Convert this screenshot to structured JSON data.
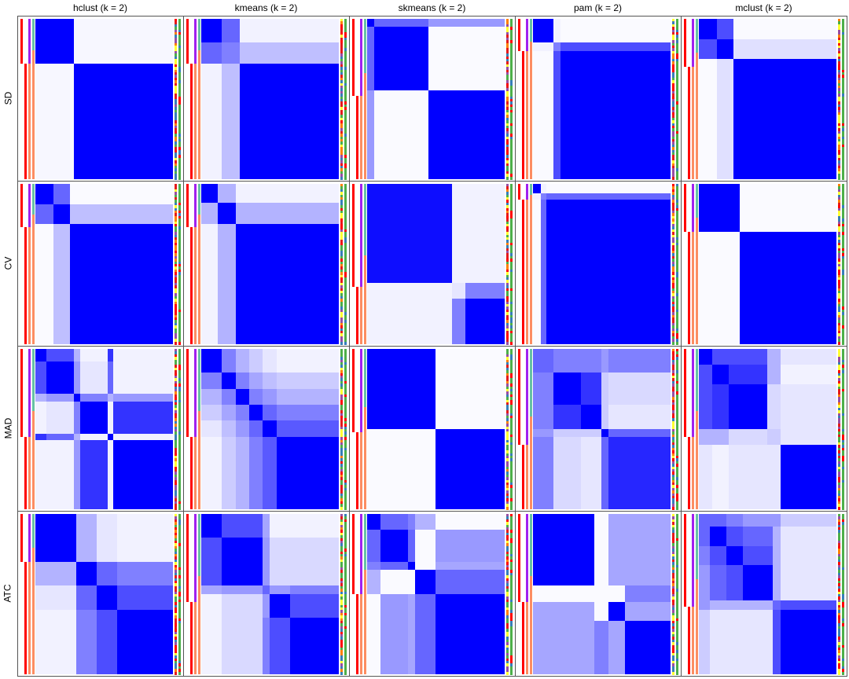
{
  "chart_data": {
    "type": "heatmap",
    "columns": [
      "hclust (k = 2)",
      "kmeans (k = 2)",
      "skmeans (k = 2)",
      "pam (k = 2)",
      "mclust (k = 2)"
    ],
    "rows": [
      "SD",
      "CV",
      "MAD",
      "ATC"
    ],
    "value_range": [
      0,
      1
    ],
    "colors": {
      "low": "#ffffff",
      "high": "#0000ff",
      "class1": "#ff0000",
      "anno_a": "#a020f0",
      "anno_b": "#66c2a5",
      "anno_c": "#fc8d62"
    },
    "panels": [
      [
        {
          "sizes": [
            0.28,
            0.72
          ],
          "matrix": [
            [
              1,
              0.03
            ],
            [
              0.03,
              1
            ]
          ],
          "split": 0.28
        },
        {
          "sizes": [
            0.15,
            0.13,
            0.72
          ],
          "matrix": [
            [
              1,
              0.6,
              0.05
            ],
            [
              0.6,
              0.5,
              0.25
            ],
            [
              0.05,
              0.25,
              1
            ]
          ],
          "split": 0.28
        },
        {
          "sizes": [
            0.05,
            0.4,
            0.55
          ],
          "matrix": [
            [
              1,
              0.6,
              0.4
            ],
            [
              0.6,
              1,
              0.02
            ],
            [
              0.4,
              0.02,
              1
            ]
          ],
          "split": 0.48
        },
        {
          "sizes": [
            0.15,
            0.05,
            0.8
          ],
          "matrix": [
            [
              1,
              0.05,
              0.02
            ],
            [
              0.05,
              0.5,
              0.7
            ],
            [
              0.02,
              0.7,
              1
            ]
          ],
          "split": 0.2
        },
        {
          "sizes": [
            0.13,
            0.12,
            0.75
          ],
          "matrix": [
            [
              1,
              0.7,
              0.02
            ],
            [
              0.7,
              1,
              0.12
            ],
            [
              0.02,
              0.12,
              1
            ]
          ],
          "split": 0.3
        }
      ],
      [
        {
          "sizes": [
            0.13,
            0.12,
            0.75
          ],
          "matrix": [
            [
              1,
              0.6,
              0.02
            ],
            [
              0.6,
              1,
              0.25
            ],
            [
              0.02,
              0.25,
              1
            ]
          ],
          "split": 0.27
        },
        {
          "sizes": [
            0.12,
            0.13,
            0.75
          ],
          "matrix": [
            [
              1,
              0.3,
              0.05
            ],
            [
              0.3,
              1,
              0.3
            ],
            [
              0.05,
              0.3,
              1
            ]
          ],
          "split": 0.27
        },
        {
          "sizes": [
            0.62,
            0.1,
            0.28
          ],
          "matrix": [
            [
              0.95,
              0.05,
              0.05
            ],
            [
              0.05,
              0.1,
              0.5
            ],
            [
              0.05,
              0.5,
              1
            ]
          ],
          "split": 0.64
        },
        {
          "sizes": [
            0.06,
            0.04,
            0.9
          ],
          "matrix": [
            [
              1,
              0.05,
              0.02
            ],
            [
              0.05,
              0.5,
              0.6
            ],
            [
              0.02,
              0.6,
              1
            ]
          ],
          "split": 0.1
        },
        {
          "sizes": [
            0.3,
            0.7
          ],
          "matrix": [
            [
              1,
              0.02
            ],
            [
              0.02,
              1
            ]
          ],
          "split": 0.3
        }
      ],
      [
        {
          "sizes": [
            0.08,
            0.2,
            0.05,
            0.2,
            0.04,
            0.43
          ],
          "matrix": [
            [
              1,
              0.7,
              0.3,
              0.05,
              0.8,
              0.05
            ],
            [
              0.7,
              1,
              0.4,
              0.1,
              0.6,
              0.05
            ],
            [
              0.3,
              0.4,
              1,
              0.5,
              0.3,
              0.4
            ],
            [
              0.05,
              0.1,
              0.5,
              1,
              0.05,
              0.8
            ],
            [
              0.8,
              0.6,
              0.3,
              0.05,
              1,
              0.05
            ],
            [
              0.05,
              0.05,
              0.4,
              0.8,
              0.05,
              1
            ]
          ],
          "split": 0.55
        },
        {
          "sizes": [
            0.15,
            0.1,
            0.1,
            0.1,
            0.1,
            0.45
          ],
          "matrix": [
            [
              1,
              0.5,
              0.3,
              0.2,
              0.1,
              0.05
            ],
            [
              0.5,
              1,
              0.5,
              0.35,
              0.25,
              0.2
            ],
            [
              0.3,
              0.5,
              1,
              0.5,
              0.4,
              0.3
            ],
            [
              0.2,
              0.35,
              0.5,
              1,
              0.6,
              0.5
            ],
            [
              0.1,
              0.25,
              0.4,
              0.6,
              1,
              0.65
            ],
            [
              0.05,
              0.2,
              0.3,
              0.5,
              0.65,
              1
            ]
          ],
          "split": 0.55
        },
        {
          "sizes": [
            0.5,
            0.5
          ],
          "matrix": [
            [
              1,
              0.02
            ],
            [
              0.02,
              1
            ]
          ],
          "split": 0.52
        },
        {
          "sizes": [
            0.15,
            0.2,
            0.15,
            0.05,
            0.45
          ],
          "matrix": [
            [
              0.6,
              0.5,
              0.5,
              0.4,
              0.5
            ],
            [
              0.5,
              1,
              0.8,
              0.2,
              0.15
            ],
            [
              0.5,
              0.8,
              1,
              0.2,
              0.1
            ],
            [
              0.4,
              0.2,
              0.2,
              1,
              0.6
            ],
            [
              0.5,
              0.15,
              0.1,
              0.6,
              0.85
            ]
          ],
          "split": 0.6
        },
        {
          "sizes": [
            0.1,
            0.12,
            0.28,
            0.1,
            0.4
          ],
          "matrix": [
            [
              1,
              0.7,
              0.7,
              0.3,
              0.1
            ],
            [
              0.7,
              1,
              0.8,
              0.3,
              0.05
            ],
            [
              0.7,
              0.8,
              1,
              0.15,
              0.1
            ],
            [
              0.3,
              0.3,
              0.15,
              0.2,
              0.1
            ],
            [
              0.1,
              0.05,
              0.1,
              0.1,
              1
            ]
          ],
          "split": 0.55
        }
      ],
      [
        {
          "sizes": [
            0.3,
            0.15,
            0.15,
            0.4
          ],
          "matrix": [
            [
              1,
              0.3,
              0.1,
              0.05
            ],
            [
              0.3,
              1,
              0.6,
              0.5
            ],
            [
              0.1,
              0.6,
              1,
              0.7
            ],
            [
              0.05,
              0.5,
              0.7,
              1
            ]
          ],
          "split": 0.3
        },
        {
          "sizes": [
            0.15,
            0.3,
            0.05,
            0.15,
            0.35
          ],
          "matrix": [
            [
              1,
              0.7,
              0.35,
              0.05,
              0.05
            ],
            [
              0.7,
              1,
              0.4,
              0.15,
              0.15
            ],
            [
              0.35,
              0.4,
              0.6,
              0.4,
              0.5
            ],
            [
              0.05,
              0.15,
              0.4,
              1,
              0.7
            ],
            [
              0.05,
              0.15,
              0.5,
              0.7,
              1
            ]
          ],
          "split": 0.55
        },
        {
          "sizes": [
            0.1,
            0.2,
            0.05,
            0.15,
            0.5
          ],
          "matrix": [
            [
              1,
              0.6,
              0.5,
              0.3,
              0.02
            ],
            [
              0.6,
              1,
              0.6,
              0.02,
              0.4
            ],
            [
              0.5,
              0.6,
              1,
              0.02,
              0.35
            ],
            [
              0.3,
              0.02,
              0.02,
              1,
              0.6
            ],
            [
              0.02,
              0.4,
              0.35,
              0.6,
              1
            ]
          ],
          "split": 0.5
        },
        {
          "sizes": [
            0.45,
            0.1,
            0.12,
            0.33
          ],
          "matrix": [
            [
              1,
              0.02,
              0.35,
              0.35
            ],
            [
              0.02,
              0.02,
              0.02,
              0.5
            ],
            [
              0.35,
              0.02,
              1,
              0.35
            ],
            [
              0.35,
              0.5,
              0.35,
              1
            ]
          ],
          "split": 0.55
        },
        {
          "sizes": [
            0.08,
            0.12,
            0.12,
            0.22,
            0.06,
            0.4
          ],
          "matrix": [
            [
              0.6,
              0.6,
              0.5,
              0.4,
              0.4,
              0.2
            ],
            [
              0.6,
              1,
              0.7,
              0.6,
              0.3,
              0.1
            ],
            [
              0.5,
              0.7,
              1,
              0.7,
              0.3,
              0.1
            ],
            [
              0.4,
              0.6,
              0.7,
              1,
              0.3,
              0.1
            ],
            [
              0.4,
              0.3,
              0.3,
              0.3,
              0.6,
              0.7
            ],
            [
              0.2,
              0.1,
              0.1,
              0.1,
              0.7,
              1
            ]
          ],
          "split": 0.58
        }
      ]
    ]
  }
}
